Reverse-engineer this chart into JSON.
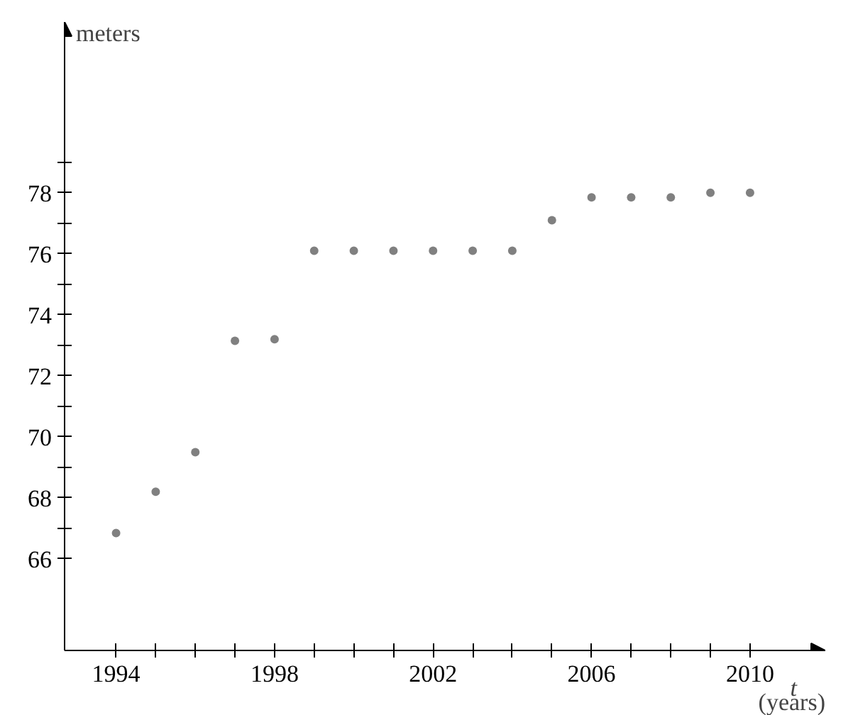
{
  "chart_data": {
    "type": "scatter",
    "ylabel": "meters",
    "xlabel": "t",
    "annotations": [
      "(years)"
    ],
    "x": [
      1994,
      1995,
      1996,
      1997,
      1998,
      1999,
      2000,
      2001,
      2002,
      2003,
      2004,
      2005,
      2006,
      2007,
      2008,
      2009,
      2010
    ],
    "series": [
      {
        "color": "#808080",
        "values": [
          66.85,
          68.2,
          69.5,
          73.15,
          73.2,
          76.1,
          76.1,
          76.1,
          76.1,
          76.1,
          76.1,
          77.1,
          77.85,
          77.85,
          77.85,
          78.0,
          78.0
        ]
      }
    ],
    "xlim": [
      1992.7,
      2011.9
    ],
    "ylim": [
      63,
      83.6
    ],
    "xticks": [
      1994,
      {
        "value": 1995,
        "label": null
      },
      {
        "value": 1996,
        "label": null
      },
      {
        "value": 1997,
        "label": null
      },
      1998,
      {
        "value": 1999,
        "label": null
      },
      {
        "value": 2000,
        "label": null
      },
      {
        "value": 2001,
        "label": null
      },
      2002,
      {
        "value": 2003,
        "label": null
      },
      {
        "value": 2004,
        "label": null
      },
      {
        "value": 2005,
        "label": null
      },
      2006,
      {
        "value": 2007,
        "label": null
      },
      {
        "value": 2008,
        "label": null
      },
      {
        "value": 2009,
        "label": null
      },
      2010
    ],
    "yticks": [
      66,
      {
        "value": 67,
        "label": null
      },
      68,
      {
        "value": 69,
        "label": null
      },
      70,
      {
        "value": 71,
        "label": null
      },
      72,
      {
        "value": 73,
        "label": null
      },
      74,
      {
        "value": 75,
        "label": null
      },
      76,
      {
        "value": 77,
        "label": null
      },
      78,
      {
        "value": 79,
        "label": null
      }
    ],
    "grid": false,
    "marker": "circle"
  }
}
